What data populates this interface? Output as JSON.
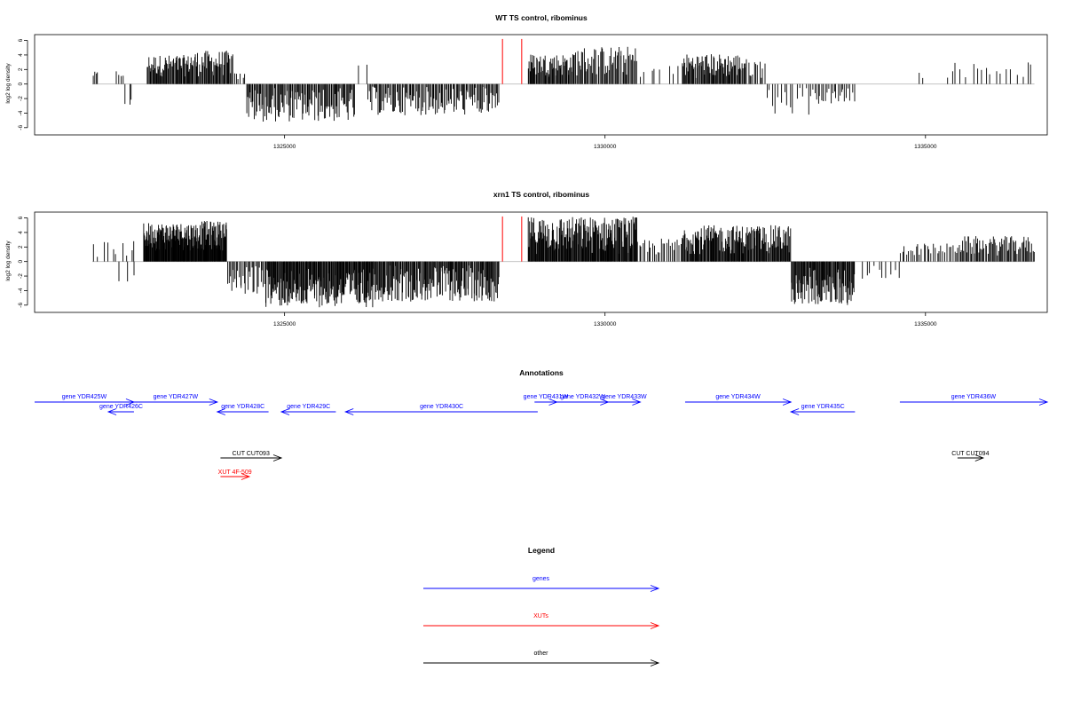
{
  "chart_data": [
    {
      "type": "bar",
      "title": "WT TS control, ribominus",
      "ylabel": "log2 log density",
      "xlim": [
        1321100,
        1336900
      ],
      "ylim": [
        -7,
        6.8
      ],
      "yticks": [
        6,
        4,
        2,
        0,
        -2,
        -4,
        -6
      ],
      "xticks": [
        1325000,
        1330000,
        1335000
      ],
      "grid": false,
      "markers": {
        "color": "#ff0000",
        "x": [
          1328400,
          1328700
        ],
        "ytop": 6.2
      },
      "color": "#000000",
      "segments": [
        {
          "start": 1322000,
          "end": 1322100,
          "n": 4,
          "sign": 1,
          "min": 0.8,
          "max": 1.7
        },
        {
          "start": 1322350,
          "end": 1322500,
          "n": 4,
          "sign": 1,
          "min": 0.8,
          "max": 1.9
        },
        {
          "start": 1322500,
          "end": 1322650,
          "n": 3,
          "sign": -1,
          "min": 1.0,
          "max": 3.1
        },
        {
          "start": 1322850,
          "end": 1323500,
          "n": 55,
          "sign": 1,
          "min": 1.0,
          "max": 4.0
        },
        {
          "start": 1323500,
          "end": 1324200,
          "n": 55,
          "sign": 1,
          "min": 1.0,
          "max": 4.6
        },
        {
          "start": 1324200,
          "end": 1324400,
          "n": 6,
          "sign": 1,
          "min": 0.5,
          "max": 1.5
        },
        {
          "start": 1324400,
          "end": 1326100,
          "n": 115,
          "sign": -1,
          "min": 0.5,
          "max": 5.2
        },
        {
          "start": 1326100,
          "end": 1326300,
          "n": 2,
          "sign": 1,
          "min": 2.5,
          "max": 3.2
        },
        {
          "start": 1326300,
          "end": 1328350,
          "n": 120,
          "sign": -1,
          "min": 0.3,
          "max": 4.3
        },
        {
          "start": 1328800,
          "end": 1329500,
          "n": 60,
          "sign": 1,
          "min": 1.0,
          "max": 4.2
        },
        {
          "start": 1329500,
          "end": 1330500,
          "n": 60,
          "sign": 1,
          "min": 1.0,
          "max": 5.2
        },
        {
          "start": 1330500,
          "end": 1331200,
          "n": 8,
          "sign": 1,
          "min": 0.8,
          "max": 2.7
        },
        {
          "start": 1331200,
          "end": 1332200,
          "n": 80,
          "sign": 1,
          "min": 0.8,
          "max": 4.2
        },
        {
          "start": 1332200,
          "end": 1332500,
          "n": 12,
          "sign": 1,
          "min": 0.8,
          "max": 3.5
        },
        {
          "start": 1332500,
          "end": 1333200,
          "n": 15,
          "sign": -1,
          "min": 0.5,
          "max": 4.3
        },
        {
          "start": 1333200,
          "end": 1333900,
          "n": 25,
          "sign": -1,
          "min": 0.5,
          "max": 2.8
        },
        {
          "start": 1334900,
          "end": 1335000,
          "n": 2,
          "sign": 1,
          "min": 0.8,
          "max": 1.7
        },
        {
          "start": 1335300,
          "end": 1336700,
          "n": 18,
          "sign": 1,
          "min": 0.8,
          "max": 3.0
        }
      ]
    },
    {
      "type": "bar",
      "title": "xrn1 TS control, ribominus",
      "ylabel": "log2 log density",
      "xlim": [
        1321100,
        1336900
      ],
      "ylim": [
        -7,
        6.8
      ],
      "yticks": [
        6,
        4,
        2,
        0,
        -2,
        -4,
        -6
      ],
      "xticks": [
        1325000,
        1330000,
        1335000
      ],
      "grid": false,
      "markers": {
        "color": "#ff0000",
        "x": [
          1328400,
          1328700
        ],
        "ytop": 6.2
      },
      "color": "#000000",
      "segments": [
        {
          "start": 1322000,
          "end": 1322700,
          "n": 10,
          "sign": 1,
          "min": 0.5,
          "max": 2.8
        },
        {
          "start": 1322300,
          "end": 1322700,
          "n": 3,
          "sign": -1,
          "min": 1.0,
          "max": 3.2
        },
        {
          "start": 1322800,
          "end": 1323700,
          "n": 130,
          "sign": 1,
          "min": 1.5,
          "max": 5.4
        },
        {
          "start": 1323700,
          "end": 1324100,
          "n": 55,
          "sign": 1,
          "min": 1.5,
          "max": 5.6
        },
        {
          "start": 1324100,
          "end": 1324700,
          "n": 30,
          "sign": -1,
          "min": 0.5,
          "max": 4.6
        },
        {
          "start": 1324700,
          "end": 1326400,
          "n": 170,
          "sign": -1,
          "min": 0.8,
          "max": 6.3
        },
        {
          "start": 1326400,
          "end": 1328350,
          "n": 160,
          "sign": -1,
          "min": 0.5,
          "max": 5.5
        },
        {
          "start": 1328800,
          "end": 1330500,
          "n": 180,
          "sign": 1,
          "min": 1.0,
          "max": 6.2
        },
        {
          "start": 1330500,
          "end": 1331200,
          "n": 25,
          "sign": 1,
          "min": 0.8,
          "max": 3.2
        },
        {
          "start": 1331200,
          "end": 1332900,
          "n": 160,
          "sign": 1,
          "min": 1.0,
          "max": 5.0
        },
        {
          "start": 1332900,
          "end": 1333900,
          "n": 90,
          "sign": -1,
          "min": 0.8,
          "max": 6.0
        },
        {
          "start": 1334000,
          "end": 1334600,
          "n": 10,
          "sign": -1,
          "min": 0.3,
          "max": 2.5
        },
        {
          "start": 1334600,
          "end": 1335500,
          "n": 30,
          "sign": 1,
          "min": 0.8,
          "max": 2.5
        },
        {
          "start": 1335500,
          "end": 1336700,
          "n": 70,
          "sign": 1,
          "min": 0.8,
          "max": 3.5
        }
      ]
    }
  ],
  "annotations": {
    "title": "Annotations",
    "items": [
      {
        "label": "gene YDR425W",
        "start": 1321100,
        "end": 1322650,
        "strand": "+",
        "track": 0,
        "color": "#0000ff"
      },
      {
        "label": "gene YDR426C",
        "start": 1322250,
        "end": 1322650,
        "strand": "-",
        "track": 1,
        "color": "#0000ff"
      },
      {
        "label": "gene YDR427W",
        "start": 1322650,
        "end": 1323950,
        "strand": "+",
        "track": 0,
        "color": "#0000ff"
      },
      {
        "label": "gene YDR428C",
        "start": 1323950,
        "end": 1324750,
        "strand": "-",
        "track": 1,
        "color": "#0000ff"
      },
      {
        "label": "gene YDR429C",
        "start": 1324950,
        "end": 1325800,
        "strand": "-",
        "track": 1,
        "color": "#0000ff"
      },
      {
        "label": "gene YDR430C",
        "start": 1325950,
        "end": 1328950,
        "strand": "-",
        "track": 1,
        "color": "#0000ff"
      },
      {
        "label": "gene YDR431W",
        "start": 1328900,
        "end": 1329250,
        "strand": "+",
        "track": 0,
        "color": "#0000ff"
      },
      {
        "label": "gene YDR432W",
        "start": 1329250,
        "end": 1330050,
        "strand": "+",
        "track": 0,
        "color": "#0000ff"
      },
      {
        "label": "gene YDR433W",
        "start": 1330050,
        "end": 1330550,
        "strand": "+",
        "track": 0,
        "color": "#0000ff"
      },
      {
        "label": "gene YDR434W",
        "start": 1331250,
        "end": 1332900,
        "strand": "+",
        "track": 0,
        "color": "#0000ff"
      },
      {
        "label": "gene YDR435C",
        "start": 1332900,
        "end": 1333900,
        "strand": "-",
        "track": 1,
        "color": "#0000ff"
      },
      {
        "label": "gene YDR436W",
        "start": 1334600,
        "end": 1336900,
        "strand": "+",
        "track": 0,
        "color": "#0000ff"
      },
      {
        "label": "CUT CUT093",
        "start": 1324000,
        "end": 1324950,
        "strand": "+",
        "track": 2,
        "color": "#000000"
      },
      {
        "label": "CUT CUT094",
        "start": 1335500,
        "end": 1335900,
        "strand": "+",
        "track": 2,
        "color": "#000000"
      },
      {
        "label": "XUT 4F-509",
        "start": 1324000,
        "end": 1324450,
        "strand": "+",
        "track": 3,
        "color": "#ff0000"
      }
    ]
  },
  "legend": {
    "title": "Legend",
    "items": [
      {
        "label": "genes",
        "color": "#0000ff"
      },
      {
        "label": "XUTs",
        "color": "#ff0000"
      },
      {
        "label": "other",
        "color": "#000000"
      }
    ]
  }
}
